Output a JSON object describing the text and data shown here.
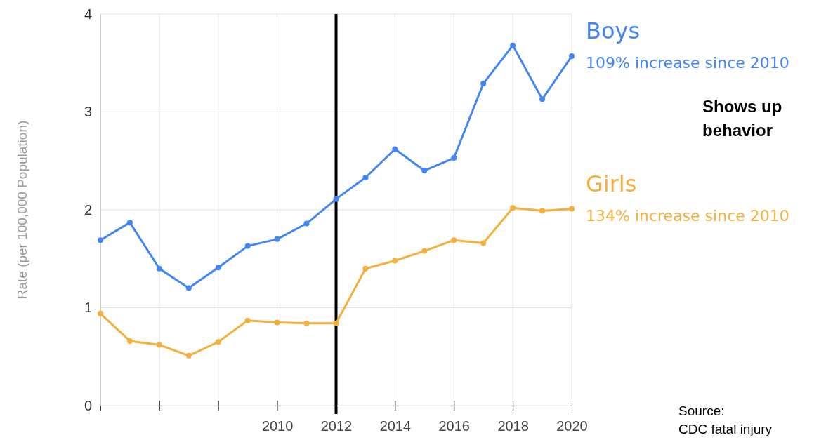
{
  "chart_data": {
    "type": "line",
    "ylabel": "Rate (per 100,000 Population)",
    "x": [
      2004,
      2005,
      2006,
      2007,
      2008,
      2009,
      2010,
      2011,
      2012,
      2013,
      2014,
      2015,
      2016,
      2017,
      2018,
      2019,
      2020
    ],
    "xlim": [
      2004,
      2020
    ],
    "xticks": [
      {
        "value": 2004,
        "label": null
      },
      {
        "value": 2006,
        "label": null
      },
      {
        "value": 2008,
        "label": null
      },
      2010,
      2012,
      2014,
      2016,
      2018,
      2020
    ],
    "ylim": [
      0,
      4
    ],
    "yticks": [
      0,
      1,
      2,
      3,
      4
    ],
    "series": [
      {
        "name": "Boys",
        "color": "#4285f4",
        "values": [
          1.69,
          1.87,
          1.4,
          1.2,
          1.41,
          1.63,
          1.7,
          1.86,
          2.11,
          2.33,
          2.62,
          2.4,
          2.53,
          3.29,
          3.68,
          3.13,
          3.57
        ]
      },
      {
        "name": "Girls",
        "color": "#f4b03c",
        "values": [
          0.94,
          0.66,
          0.62,
          0.51,
          0.65,
          0.87,
          0.85,
          0.84,
          0.84,
          1.4,
          1.48,
          1.58,
          1.69,
          1.66,
          2.02,
          1.99,
          2.01
        ]
      }
    ],
    "ref_lines": [
      {
        "axis": "x",
        "value": 2012,
        "color": "#000000"
      }
    ],
    "annotations": [
      "109% increase since 2010",
      "134% increase since 2010",
      "Shows up behavior",
      "Source: CDC fatal injury"
    ],
    "grid": true,
    "legend": "right",
    "marker": "circle",
    "line_style": "solid"
  }
}
